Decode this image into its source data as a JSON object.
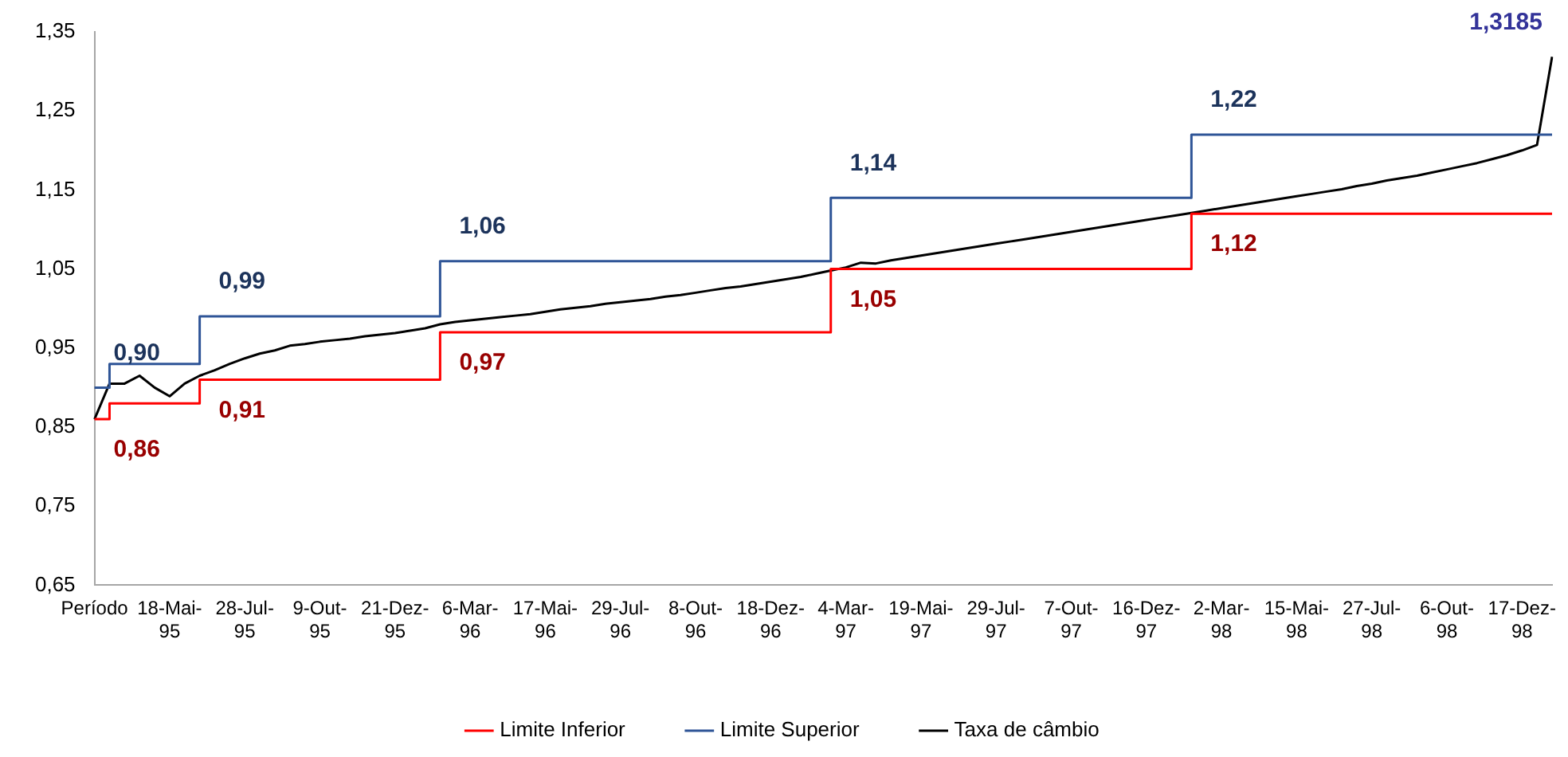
{
  "chart_data": {
    "type": "line",
    "categories": [
      "Período",
      null,
      null,
      null,
      null,
      "18-Mai-95",
      null,
      null,
      null,
      null,
      "28-Jul-95",
      null,
      null,
      null,
      null,
      "9-Out-95",
      null,
      null,
      null,
      null,
      "21-Dez-95",
      null,
      null,
      null,
      null,
      "6-Mar-96",
      null,
      null,
      null,
      null,
      "17-Mai-96",
      null,
      null,
      null,
      null,
      "29-Jul-96",
      null,
      null,
      null,
      null,
      "8-Out-96",
      null,
      null,
      null,
      null,
      "18-Dez-96",
      null,
      null,
      null,
      null,
      "4-Mar-97",
      null,
      null,
      null,
      null,
      "19-Mai-97",
      null,
      null,
      null,
      null,
      "29-Jul-97",
      null,
      null,
      null,
      null,
      "7-Out-97",
      null,
      null,
      null,
      null,
      "16-Dez-97",
      null,
      null,
      null,
      null,
      "2-Mar-98",
      null,
      null,
      null,
      null,
      "15-Mai-98",
      null,
      null,
      null,
      null,
      "27-Jul-98",
      null,
      null,
      null,
      null,
      "6-Out-98",
      null,
      null,
      null,
      null,
      "17-Dez-98",
      null,
      null
    ],
    "series": [
      {
        "name": "Limite Inferior",
        "type": "step",
        "color": "#ff0000",
        "values": [
          0.86,
          0.88,
          0.88,
          0.88,
          0.88,
          0.88,
          0.88,
          0.91,
          0.91,
          0.91,
          0.91,
          0.91,
          0.91,
          0.91,
          0.91,
          0.91,
          0.91,
          0.91,
          0.91,
          0.91,
          0.91,
          0.91,
          0.91,
          0.97,
          0.97,
          0.97,
          0.97,
          0.97,
          0.97,
          0.97,
          0.97,
          0.97,
          0.97,
          0.97,
          0.97,
          0.97,
          0.97,
          0.97,
          0.97,
          0.97,
          0.97,
          0.97,
          0.97,
          0.97,
          0.97,
          0.97,
          0.97,
          0.97,
          0.97,
          1.05,
          1.05,
          1.05,
          1.05,
          1.05,
          1.05,
          1.05,
          1.05,
          1.05,
          1.05,
          1.05,
          1.05,
          1.05,
          1.05,
          1.05,
          1.05,
          1.05,
          1.05,
          1.05,
          1.05,
          1.05,
          1.05,
          1.05,
          1.05,
          1.12,
          1.12,
          1.12,
          1.12,
          1.12,
          1.12,
          1.12,
          1.12,
          1.12,
          1.12,
          1.12,
          1.12,
          1.12,
          1.12,
          1.12,
          1.12,
          1.12,
          1.12,
          1.12,
          1.12,
          1.12,
          1.12,
          1.12,
          1.12,
          1.12
        ],
        "value_labels": [
          "0,86",
          null,
          null,
          null,
          null,
          null,
          null,
          "0,91",
          null,
          null,
          null,
          null,
          null,
          null,
          null,
          null,
          null,
          null,
          null,
          null,
          null,
          null,
          null,
          "0,97",
          null,
          null,
          null,
          null,
          null,
          null,
          null,
          null,
          null,
          null,
          null,
          null,
          null,
          null,
          null,
          null,
          null,
          null,
          null,
          null,
          null,
          null,
          null,
          null,
          null,
          "1,05",
          null,
          null,
          null,
          null,
          null,
          null,
          null,
          null,
          null,
          null,
          null,
          null,
          null,
          null,
          null,
          null,
          null,
          null,
          null,
          null,
          null,
          null,
          null,
          "1,12",
          null,
          null,
          null,
          null,
          null,
          null,
          null,
          null,
          null,
          null,
          null,
          null,
          null,
          null,
          null,
          null,
          null,
          null,
          null,
          null,
          null,
          null,
          null,
          null
        ]
      },
      {
        "name": "Limite Superior",
        "type": "step",
        "color": "#2f5597",
        "values": [
          0.9,
          0.93,
          0.93,
          0.93,
          0.93,
          0.93,
          0.93,
          0.99,
          0.99,
          0.99,
          0.99,
          0.99,
          0.99,
          0.99,
          0.99,
          0.99,
          0.99,
          0.99,
          0.99,
          0.99,
          0.99,
          0.99,
          0.99,
          1.06,
          1.06,
          1.06,
          1.06,
          1.06,
          1.06,
          1.06,
          1.06,
          1.06,
          1.06,
          1.06,
          1.06,
          1.06,
          1.06,
          1.06,
          1.06,
          1.06,
          1.06,
          1.06,
          1.06,
          1.06,
          1.06,
          1.06,
          1.06,
          1.06,
          1.06,
          1.14,
          1.14,
          1.14,
          1.14,
          1.14,
          1.14,
          1.14,
          1.14,
          1.14,
          1.14,
          1.14,
          1.14,
          1.14,
          1.14,
          1.14,
          1.14,
          1.14,
          1.14,
          1.14,
          1.14,
          1.14,
          1.14,
          1.14,
          1.14,
          1.22,
          1.22,
          1.22,
          1.22,
          1.22,
          1.22,
          1.22,
          1.22,
          1.22,
          1.22,
          1.22,
          1.22,
          1.22,
          1.22,
          1.22,
          1.22,
          1.22,
          1.22,
          1.22,
          1.22,
          1.22,
          1.22,
          1.22,
          1.22,
          1.22
        ],
        "value_labels": [
          "0,90",
          null,
          null,
          null,
          null,
          null,
          null,
          "0,99",
          null,
          null,
          null,
          null,
          null,
          null,
          null,
          null,
          null,
          null,
          null,
          null,
          null,
          null,
          null,
          "1,06",
          null,
          null,
          null,
          null,
          null,
          null,
          null,
          null,
          null,
          null,
          null,
          null,
          null,
          null,
          null,
          null,
          null,
          null,
          null,
          null,
          null,
          null,
          null,
          null,
          null,
          "1,14",
          null,
          null,
          null,
          null,
          null,
          null,
          null,
          null,
          null,
          null,
          null,
          null,
          null,
          null,
          null,
          null,
          null,
          null,
          null,
          null,
          null,
          null,
          null,
          "1,22",
          null,
          null,
          null,
          null,
          null,
          null,
          null,
          null,
          null,
          null,
          null,
          null,
          null,
          null,
          null,
          null,
          null,
          null,
          null,
          null,
          null,
          null,
          null,
          null
        ]
      },
      {
        "name": "Taxa de câmbio",
        "type": "line",
        "color": "#000000",
        "values": [
          0.86,
          0.905,
          0.905,
          0.915,
          0.9,
          0.889,
          0.905,
          0.915,
          0.922,
          0.93,
          0.937,
          0.943,
          0.947,
          0.953,
          0.955,
          0.958,
          0.96,
          0.962,
          0.965,
          0.967,
          0.969,
          0.972,
          0.975,
          0.98,
          0.983,
          0.985,
          0.987,
          0.989,
          0.991,
          0.993,
          0.996,
          0.999,
          1.001,
          1.003,
          1.006,
          1.008,
          1.01,
          1.012,
          1.015,
          1.017,
          1.02,
          1.023,
          1.026,
          1.028,
          1.031,
          1.034,
          1.037,
          1.04,
          1.044,
          1.048,
          1.052,
          1.058,
          1.057,
          1.061,
          1.064,
          1.067,
          1.07,
          1.073,
          1.076,
          1.079,
          1.082,
          1.085,
          1.088,
          1.091,
          1.094,
          1.097,
          1.1,
          1.103,
          1.106,
          1.109,
          1.112,
          1.115,
          1.118,
          1.121,
          1.124,
          1.127,
          1.13,
          1.133,
          1.136,
          1.139,
          1.142,
          1.145,
          1.148,
          1.151,
          1.155,
          1.158,
          1.162,
          1.165,
          1.168,
          1.172,
          1.176,
          1.18,
          1.184,
          1.189,
          1.194,
          1.2,
          1.207,
          1.3185
        ],
        "value_labels": [
          null,
          null,
          null,
          null,
          null,
          null,
          null,
          null,
          null,
          null,
          null,
          null,
          null,
          null,
          null,
          null,
          null,
          null,
          null,
          null,
          null,
          null,
          null,
          null,
          null,
          null,
          null,
          null,
          null,
          null,
          null,
          null,
          null,
          null,
          null,
          null,
          null,
          null,
          null,
          null,
          null,
          null,
          null,
          null,
          null,
          null,
          null,
          null,
          null,
          null,
          null,
          null,
          null,
          null,
          null,
          null,
          null,
          null,
          null,
          null,
          null,
          null,
          null,
          null,
          null,
          null,
          null,
          null,
          null,
          null,
          null,
          null,
          null,
          null,
          null,
          null,
          null,
          null,
          null,
          null,
          null,
          null,
          null,
          null,
          null,
          null,
          null,
          null,
          null,
          null,
          null,
          null,
          null,
          null,
          null,
          null,
          null,
          "1,3185"
        ]
      }
    ],
    "ylim": [
      0.65,
      1.35
    ],
    "yticks": [
      {
        "value": 0.65,
        "label": "0,65"
      },
      {
        "value": 0.75,
        "label": "0,75"
      },
      {
        "value": 0.85,
        "label": "0,85"
      },
      {
        "value": 0.95,
        "label": "0,95"
      },
      {
        "value": 1.05,
        "label": "1,05"
      },
      {
        "value": 1.15,
        "label": "1,15"
      },
      {
        "value": 1.25,
        "label": "1,25"
      },
      {
        "value": 1.35,
        "label": "1,35"
      }
    ],
    "grid": false,
    "legend": "bottom",
    "marker": "none"
  }
}
